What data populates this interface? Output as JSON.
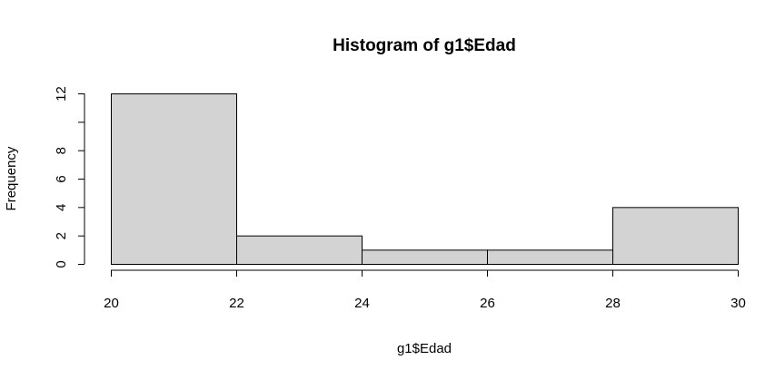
{
  "chart_data": {
    "type": "bar",
    "title": "Histogram of g1$Edad",
    "xlabel": "g1$Edad",
    "ylabel": "Frequency",
    "bins": [
      {
        "from": 20,
        "to": 22,
        "count": 12
      },
      {
        "from": 22,
        "to": 24,
        "count": 2
      },
      {
        "from": 24,
        "to": 26,
        "count": 1
      },
      {
        "from": 26,
        "to": 28,
        "count": 1
      },
      {
        "from": 28,
        "to": 30,
        "count": 4
      }
    ],
    "xlim": [
      20,
      30
    ],
    "ylim": [
      0,
      12
    ],
    "xticks": [
      "20",
      "22",
      "24",
      "26",
      "28",
      "30"
    ],
    "yticks": [
      "0",
      "2",
      "4",
      "6",
      "8",
      "",
      "12"
    ],
    "bar_fill": "#d3d3d3",
    "bar_stroke": "#000000",
    "grid": false,
    "legend": "none"
  }
}
